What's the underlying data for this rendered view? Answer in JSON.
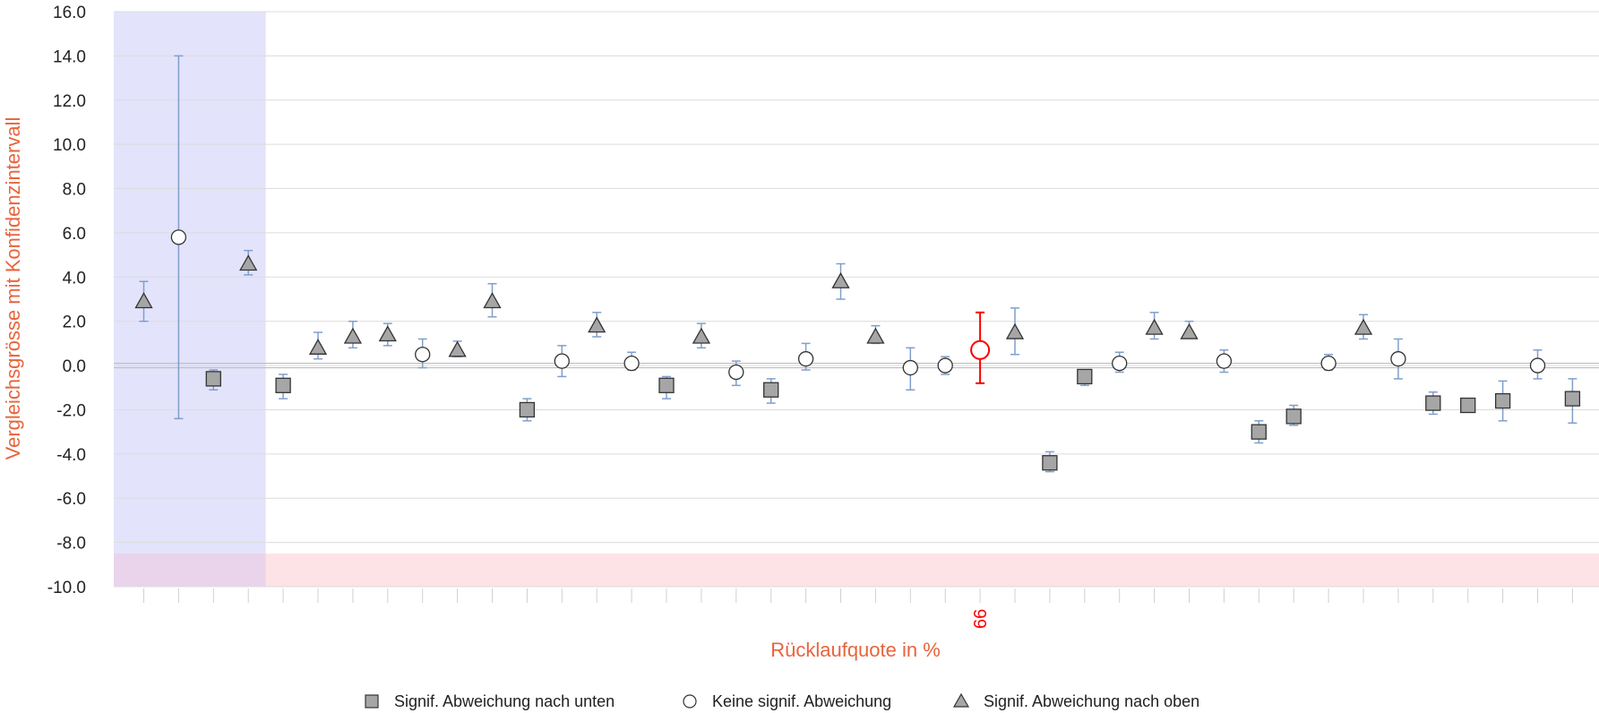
{
  "chart_data": {
    "type": "scatter",
    "title": "",
    "xlabel": "Rücklaufquote in %",
    "ylabel": "Vergleichsgrösse mit Konfidenzintervall",
    "ylim": [
      -10,
      16
    ],
    "yticks": [
      "16.0",
      "14.0",
      "12.0",
      "10.0",
      "8.0",
      "6.0",
      "4.0",
      "2.0",
      "0.0",
      "-2.0",
      "-4.0",
      "-6.0",
      "-8.0",
      "-10.0"
    ],
    "grid": true,
    "legend_position": "bottom",
    "highlight_category_label": "66",
    "legend": [
      {
        "marker": "square",
        "label": "Signif. Abweichung nach unten"
      },
      {
        "marker": "circle",
        "label": "Keine signif. Abweichung"
      },
      {
        "marker": "triangle",
        "label": "Signif. Abweichung nach oben"
      }
    ],
    "colors": {
      "marker_fill": "#a6a6a6",
      "marker_stroke": "#333333",
      "error_bar": "#7f9fcc",
      "highlight": "#ff0000",
      "blue_band": "#e3e3fb",
      "pink_band": "#fde3e5",
      "overlap": "#e9d4ec",
      "axis_title": "#e8643c"
    },
    "points": [
      {
        "y": 2.9,
        "lo": 2.0,
        "hi": 3.8,
        "marker": "triangle"
      },
      {
        "y": 5.8,
        "lo": -2.4,
        "hi": 14.0,
        "marker": "circle"
      },
      {
        "y": -0.6,
        "lo": -1.1,
        "hi": -0.2,
        "marker": "square"
      },
      {
        "y": 4.6,
        "lo": 4.1,
        "hi": 5.2,
        "marker": "triangle"
      },
      {
        "y": -0.9,
        "lo": -1.5,
        "hi": -0.4,
        "marker": "square"
      },
      {
        "y": 0.8,
        "lo": 0.3,
        "hi": 1.5,
        "marker": "triangle"
      },
      {
        "y": 1.3,
        "lo": 0.8,
        "hi": 2.0,
        "marker": "triangle"
      },
      {
        "y": 1.4,
        "lo": 0.9,
        "hi": 1.9,
        "marker": "triangle"
      },
      {
        "y": 0.5,
        "lo": -0.1,
        "hi": 1.2,
        "marker": "circle"
      },
      {
        "y": 0.7,
        "lo": 0.4,
        "hi": 1.1,
        "marker": "triangle"
      },
      {
        "y": 2.9,
        "lo": 2.2,
        "hi": 3.7,
        "marker": "triangle"
      },
      {
        "y": -2.0,
        "lo": -2.5,
        "hi": -1.5,
        "marker": "square"
      },
      {
        "y": 0.2,
        "lo": -0.5,
        "hi": 0.9,
        "marker": "circle"
      },
      {
        "y": 1.8,
        "lo": 1.3,
        "hi": 2.4,
        "marker": "triangle"
      },
      {
        "y": 0.1,
        "lo": -0.2,
        "hi": 0.6,
        "marker": "circle"
      },
      {
        "y": -0.9,
        "lo": -1.5,
        "hi": -0.5,
        "marker": "square"
      },
      {
        "y": 1.3,
        "lo": 0.8,
        "hi": 1.9,
        "marker": "triangle"
      },
      {
        "y": -0.3,
        "lo": -0.9,
        "hi": 0.2,
        "marker": "circle"
      },
      {
        "y": -1.1,
        "lo": -1.7,
        "hi": -0.6,
        "marker": "square"
      },
      {
        "y": 0.3,
        "lo": -0.2,
        "hi": 1.0,
        "marker": "circle"
      },
      {
        "y": 3.8,
        "lo": 3.0,
        "hi": 4.6,
        "marker": "triangle"
      },
      {
        "y": 1.3,
        "lo": 1.0,
        "hi": 1.8,
        "marker": "triangle"
      },
      {
        "y": -0.1,
        "lo": -1.1,
        "hi": 0.8,
        "marker": "circle"
      },
      {
        "y": 0.0,
        "lo": -0.4,
        "hi": 0.4,
        "marker": "circle"
      },
      {
        "y": 0.7,
        "lo": -0.8,
        "hi": 2.4,
        "marker": "circle",
        "highlight": true
      },
      {
        "y": 1.5,
        "lo": 0.5,
        "hi": 2.6,
        "marker": "triangle"
      },
      {
        "y": -4.4,
        "lo": -4.8,
        "hi": -3.9,
        "marker": "square"
      },
      {
        "y": -0.5,
        "lo": -0.9,
        "hi": -0.3,
        "marker": "square"
      },
      {
        "y": 0.1,
        "lo": -0.3,
        "hi": 0.6,
        "marker": "circle"
      },
      {
        "y": 1.7,
        "lo": 1.2,
        "hi": 2.4,
        "marker": "triangle"
      },
      {
        "y": 1.5,
        "lo": 1.3,
        "hi": 2.0,
        "marker": "triangle"
      },
      {
        "y": 0.2,
        "lo": -0.3,
        "hi": 0.7,
        "marker": "circle"
      },
      {
        "y": -3.0,
        "lo": -3.5,
        "hi": -2.5,
        "marker": "square"
      },
      {
        "y": -2.3,
        "lo": -2.7,
        "hi": -1.8,
        "marker": "square"
      },
      {
        "y": 0.1,
        "lo": -0.2,
        "hi": 0.5,
        "marker": "circle"
      },
      {
        "y": 1.7,
        "lo": 1.2,
        "hi": 2.3,
        "marker": "triangle"
      },
      {
        "y": 0.3,
        "lo": -0.6,
        "hi": 1.2,
        "marker": "circle"
      },
      {
        "y": -1.7,
        "lo": -2.2,
        "hi": -1.2,
        "marker": "square"
      },
      {
        "y": -1.8,
        "lo": -2.0,
        "hi": -1.5,
        "marker": "square"
      },
      {
        "y": -1.6,
        "lo": -2.5,
        "hi": -0.7,
        "marker": "square"
      },
      {
        "y": 0.0,
        "lo": -0.6,
        "hi": 0.7,
        "marker": "circle"
      },
      {
        "y": -1.5,
        "lo": -2.6,
        "hi": -0.6,
        "marker": "square"
      }
    ]
  }
}
